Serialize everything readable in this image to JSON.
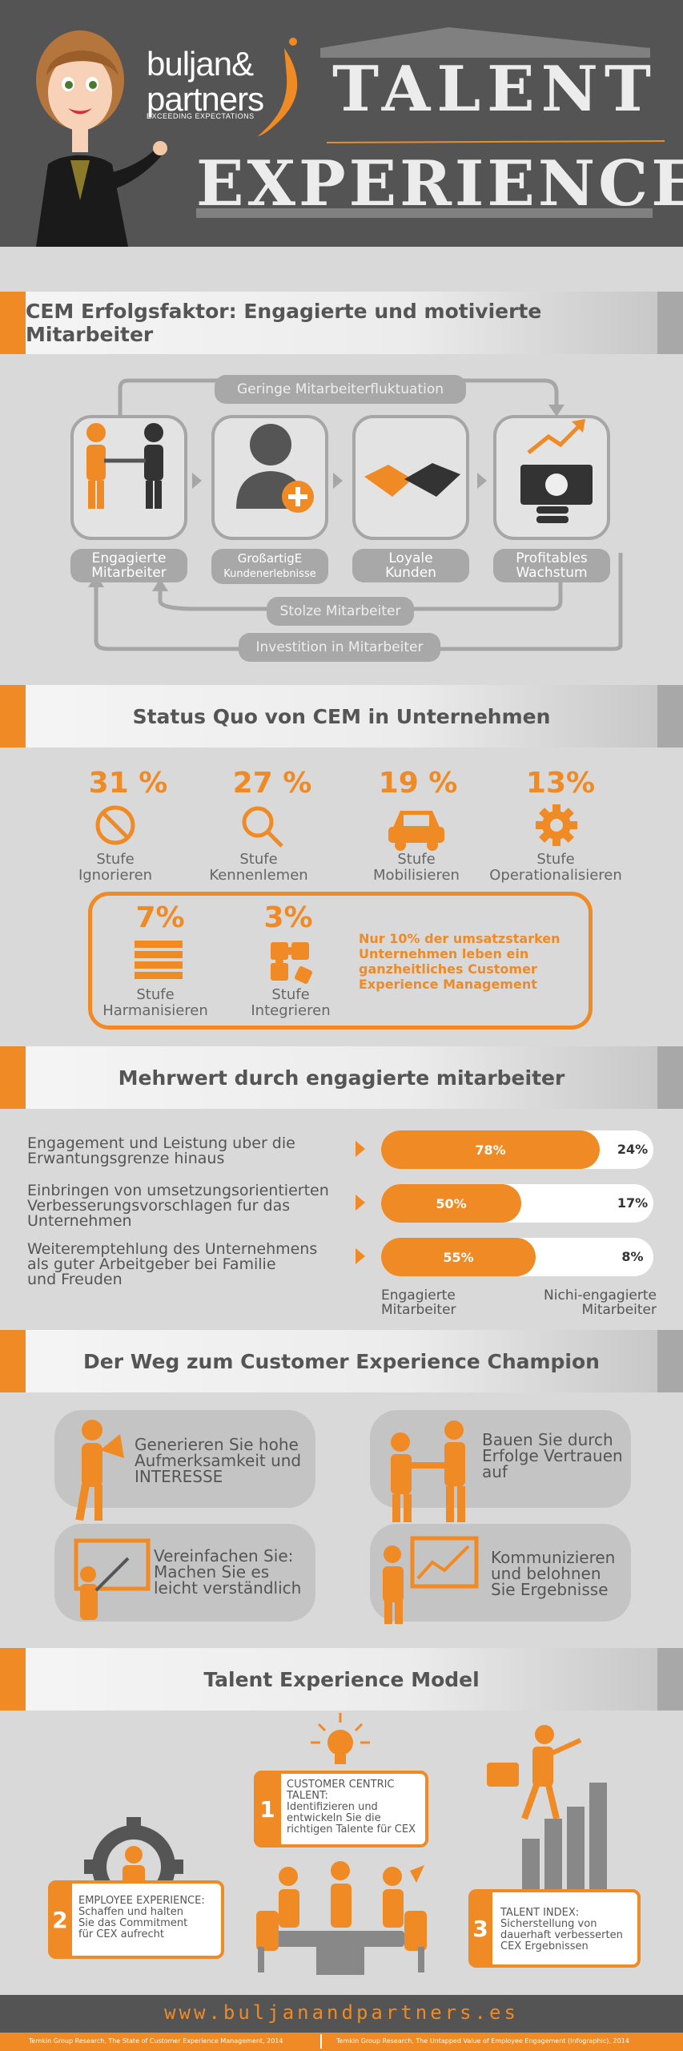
{
  "header": {
    "brand_line1": "buljan&",
    "brand_line2": "partners",
    "tagline": "EXCEEDING EXPECTATIONS",
    "title_line1": "TALENT",
    "title_line2": "EXPERIENCE"
  },
  "section1": {
    "title": "CEM Erfolgsfaktor: Engagierte und motivierte Mitarbeiter",
    "top_arrow": "Geringe Mitarbeiterfluktuation",
    "boxes": [
      {
        "line1": "Engagierte",
        "line2": "Mitarbeiter"
      },
      {
        "line1": "GroßartigE",
        "line2": "Kundenerlebnisse"
      },
      {
        "line1": "Loyale",
        "line2": "Kunden"
      },
      {
        "line1": "Profitables",
        "line2": "Wachstum"
      }
    ],
    "bottom1": "Stolze Mitarbeiter",
    "bottom2": "Investition in Mitarbeiter"
  },
  "section2": {
    "title": "Status Quo von CEM in Unternehmen",
    "stages": [
      {
        "pct": "31 %",
        "line1": "Stufe",
        "line2": "Ignorieren"
      },
      {
        "pct": "27 %",
        "line1": "Stufe",
        "line2": "Kennenlemen"
      },
      {
        "pct": "19 %",
        "line1": "Stufe",
        "line2": "Mobilisieren"
      },
      {
        "pct": "13%",
        "line1": "Stufe",
        "line2": "Operationalisieren"
      },
      {
        "pct": "7%",
        "line1": "Stufe",
        "line2": "Harmanisieren"
      },
      {
        "pct": "3%",
        "line1": "Stufe",
        "line2": "Integrieren"
      }
    ],
    "note": [
      "Nur 10% der umsatzstarken",
      "Unternehmen leben ein",
      "ganzheitliches Customer",
      "Experience Management"
    ]
  },
  "section3": {
    "title": "Mehrwert durch engagierte mitarbeiter",
    "rows": [
      {
        "lines": [
          "Engagement und Leistung uber die",
          "Erwantungsgrenze hinaus"
        ],
        "engaged": "78%",
        "not": "24%",
        "engaged_value": 78,
        "not_value": 24
      },
      {
        "lines": [
          "Einbringen von umsetzungsorientierten",
          "Verbesserungsvorschlagen fur das",
          "Unternehmen"
        ],
        "engaged": "50%",
        "not": "17%",
        "engaged_value": 50,
        "not_value": 17
      },
      {
        "lines": [
          "Weiteremptehlung des Unternehmens",
          "als guter Arbeitgeber bei Familie",
          "und Freuden"
        ],
        "engaged": "55%",
        "not": "8%",
        "engaged_value": 55,
        "not_value": 8
      }
    ],
    "legend1": [
      "Engagierte",
      "Mitarbeiter"
    ],
    "legend2": [
      "Nichi-engagierte",
      "Mitarbeiter"
    ]
  },
  "section4": {
    "title": "Der Weg zum Customer Experience Champion",
    "cards": [
      {
        "lines": [
          "Generieren Sie hohe",
          "Aufmerksamkeit und",
          "INTERESSE"
        ]
      },
      {
        "lines": [
          "Bauen Sie durch",
          "Erfolge Vertrauen",
          "auf"
        ]
      },
      {
        "lines": [
          "Vereinfachen Sie:",
          "Machen Sie es",
          "leicht verständlich"
        ]
      },
      {
        "lines": [
          "Kommunizieren",
          "und belohnen",
          "Sie Ergebnisse"
        ]
      }
    ]
  },
  "section5": {
    "title": "Talent Experience Model",
    "items": [
      {
        "num": "1",
        "lines": [
          "CUSTOMER CENTRIC",
          "TALENT:",
          "Identifizieren und",
          "entwickeln Sie die",
          "richtigen Talente für CEX"
        ]
      },
      {
        "num": "2",
        "lines": [
          "EMPLOYEE EXPERIENCE:",
          "Schaffen und halten",
          "Sie das Commitment",
          "für CEX aufrecht"
        ]
      },
      {
        "num": "3",
        "lines": [
          "TALENT INDEX:",
          "Sicherstellung von",
          "dauerhaft verbesserten",
          "CEX Ergebnissen"
        ]
      }
    ]
  },
  "footer": {
    "url": "www.buljanandpartners.es",
    "source1": "Temkin Group Research, The State of Customer Experience Management, 2014",
    "source2": "Temkin Group Research, The Untapped Value of Employee Engagement (Infographic), 2014"
  },
  "colors": {
    "orange": "#f08a24",
    "gray": "#a8a8a8",
    "dark": "#545454"
  }
}
